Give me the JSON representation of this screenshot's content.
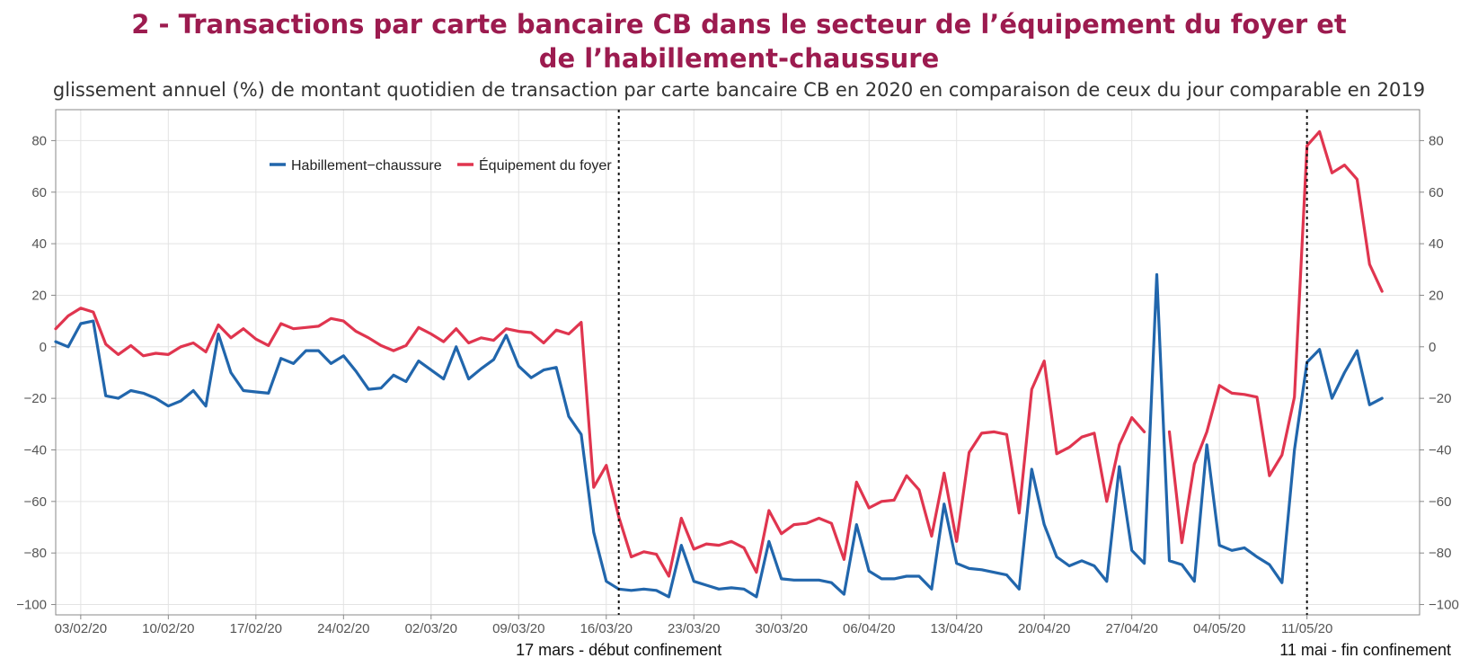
{
  "header": {
    "title_line1": "2 - Transactions par carte bancaire CB dans le secteur de l’équipement du foyer et",
    "title_line2": "de l’habillement-chaussure",
    "subtitle": "glissement annuel (%) de montant quotidien de transaction par carte bancaire CB en 2020 en comparaison de ceux du jour comparable en 2019"
  },
  "colors": {
    "habillement": "#2166ac",
    "equipement": "#e0354f",
    "grid": "#e3e3e3",
    "axis": "#888888"
  },
  "chart_data": {
    "type": "line",
    "title": "2 - Transactions par carte bancaire CB dans le secteur de l’équipement du foyer et de l’habillement-chaussure",
    "subtitle": "glissement annuel (%) de montant quotidien de transaction par carte bancaire CB en 2020 en comparaison de ceux du jour comparable en 2019",
    "x_start": "2020-02-01",
    "x_end": "2020-05-20",
    "ylim": [
      -104,
      92
    ],
    "yticks": [
      80,
      60,
      40,
      20,
      0,
      -20,
      -40,
      -60,
      -80,
      -100
    ],
    "ytick_labels": [
      "80",
      "60",
      "40",
      "20",
      "0",
      "−20",
      "−40",
      "−60",
      "−80",
      "−100"
    ],
    "xticks": [
      {
        "date": "2020-02-03",
        "label": "03/02/20"
      },
      {
        "date": "2020-02-10",
        "label": "10/02/20"
      },
      {
        "date": "2020-02-17",
        "label": "17/02/20"
      },
      {
        "date": "2020-02-24",
        "label": "24/02/20"
      },
      {
        "date": "2020-03-02",
        "label": "02/03/20"
      },
      {
        "date": "2020-03-09",
        "label": "09/03/20"
      },
      {
        "date": "2020-03-16",
        "label": "16/03/20"
      },
      {
        "date": "2020-03-23",
        "label": "23/03/20"
      },
      {
        "date": "2020-03-30",
        "label": "30/03/20"
      },
      {
        "date": "2020-04-06",
        "label": "06/04/20"
      },
      {
        "date": "2020-04-13",
        "label": "13/04/20"
      },
      {
        "date": "2020-04-20",
        "label": "20/04/20"
      },
      {
        "date": "2020-04-27",
        "label": "27/04/20"
      },
      {
        "date": "2020-05-04",
        "label": "04/05/20"
      },
      {
        "date": "2020-05-11",
        "label": "11/05/20"
      }
    ],
    "grid": true,
    "legend_position": "top-left",
    "annotations": [
      {
        "date": "2020-03-17",
        "label": "17 mars - début confinement"
      },
      {
        "date": "2020-05-11",
        "label": "11 mai - fin confinement"
      }
    ],
    "series": [
      {
        "name": "Habillement−chaussure",
        "color": "#2166ac",
        "values": [
          2,
          0,
          9,
          10,
          -19,
          -20,
          -17,
          -18,
          -20,
          -23,
          -21,
          -17,
          -23,
          5,
          -10,
          -17,
          -17.5,
          -18,
          -4.5,
          -6.5,
          -1.5,
          -1.5,
          -6.5,
          -3.5,
          -9.5,
          -16.5,
          -16,
          -11,
          -13.5,
          -5.5,
          -9,
          -12.5,
          0,
          -12.5,
          -8.5,
          -5,
          4.5,
          -7.5,
          -12,
          -9,
          -8,
          -27,
          -34,
          -72,
          -91,
          -94,
          -94.5,
          -94,
          -94.5,
          -97,
          -77,
          -91,
          -92.5,
          -94,
          -93.5,
          -94,
          -97,
          -75.5,
          -90,
          -90.5,
          -90.5,
          -90.5,
          -91.5,
          -96,
          -69,
          -87,
          -90,
          -90,
          -89,
          -89,
          -94,
          -61,
          -84,
          -86,
          -86.5,
          -87.5,
          -88.5,
          -94,
          -47.5,
          -69,
          -81.5,
          -85,
          -83,
          -85,
          -91,
          -46.5,
          -79,
          -84,
          28,
          -83,
          -84.5,
          -91,
          -38,
          -77,
          -79,
          -78,
          -81.5,
          -84.5,
          -91.5,
          -40,
          -6,
          -1,
          -20,
          -10,
          -1.5,
          -22.5,
          -20
        ]
      },
      {
        "name": "Équipement du foyer",
        "color": "#e0354f",
        "values": [
          7,
          12,
          15,
          13.5,
          1,
          -3,
          0.5,
          -3.5,
          -2.5,
          -3,
          0,
          1.5,
          -2,
          8.5,
          3.5,
          7,
          3,
          0.5,
          9,
          7,
          7.5,
          8,
          11,
          10,
          6,
          3.5,
          0.5,
          -1.5,
          0.5,
          7.5,
          5,
          2,
          7,
          1.5,
          3.5,
          2.5,
          7,
          6,
          5.5,
          1.5,
          6.5,
          5,
          9.5,
          -54.5,
          -46,
          -66,
          -81.5,
          -79.5,
          -80.5,
          -89,
          -66.5,
          -78.5,
          -76.5,
          -77,
          -75.5,
          -78,
          -87.5,
          -63.5,
          -72.5,
          -69,
          -68.5,
          -66.5,
          -68.5,
          -82.5,
          -52.5,
          -62.5,
          -60,
          -59.5,
          -50,
          -55.5,
          -73.5,
          -49,
          -75.5,
          -41,
          -33.5,
          -33,
          -34,
          -64.5,
          -16.5,
          -5.5,
          -41.5,
          -39,
          -35,
          -33.5,
          -60,
          -38,
          -27.5,
          -33,
          null,
          -33,
          -76,
          -45.5,
          -33,
          -15,
          -18,
          -18.5,
          -19.5,
          -50,
          -42,
          -19.5,
          78,
          83.5,
          67.5,
          70.5,
          65,
          32,
          21.5
        ]
      }
    ]
  }
}
